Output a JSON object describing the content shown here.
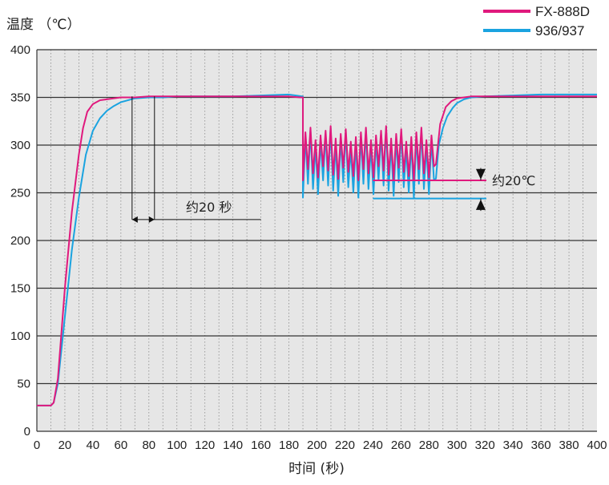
{
  "chart_data": {
    "type": "line",
    "ylabel": "温度 （℃）",
    "xlabel": "时间 (秒)",
    "xlim": [
      0,
      400
    ],
    "ylim": [
      0,
      400
    ],
    "x_ticks": [
      0,
      20,
      40,
      60,
      80,
      100,
      120,
      140,
      160,
      180,
      200,
      220,
      240,
      260,
      280,
      300,
      320,
      340,
      360,
      380,
      400
    ],
    "y_ticks": [
      0,
      50,
      100,
      150,
      200,
      250,
      300,
      350,
      400
    ],
    "grid": true,
    "legend_position": "top-right",
    "series": [
      {
        "name": "FX-888D",
        "color": "#e0197d",
        "x": [
          0,
          10,
          12,
          15,
          20,
          25,
          30,
          33,
          36,
          40,
          45,
          50,
          55,
          60,
          70,
          80,
          90,
          100,
          120,
          140,
          160,
          180,
          188,
          190
        ],
        "y": [
          27,
          27,
          30,
          55,
          150,
          230,
          290,
          318,
          335,
          343,
          347,
          348,
          349,
          350,
          350,
          351,
          351,
          351,
          351,
          351,
          351,
          351,
          350,
          350
        ],
        "oscillation": {
          "x_start": 190,
          "x_end": 285,
          "min": 263,
          "max": 320,
          "center": 290
        },
        "recovery": {
          "x": [
            285,
            288,
            292,
            296,
            300,
            305,
            310,
            320,
            340,
            360,
            380,
            400
          ],
          "y": [
            280,
            322,
            340,
            346,
            349,
            350,
            351,
            351,
            351,
            351,
            351,
            351
          ]
        }
      },
      {
        "name": "936/937",
        "color": "#1aa3e0",
        "x": [
          0,
          10,
          12,
          15,
          20,
          25,
          30,
          35,
          40,
          45,
          50,
          55,
          60,
          70,
          80,
          90,
          100,
          120,
          140,
          160,
          180,
          185,
          190
        ],
        "y": [
          27,
          27,
          30,
          50,
          120,
          190,
          245,
          290,
          315,
          328,
          336,
          341,
          345,
          349,
          350,
          350,
          351,
          351,
          351,
          352,
          353,
          352,
          351
        ],
        "oscillation": {
          "x_start": 190,
          "x_end": 285,
          "min": 245,
          "max": 318,
          "center": 278
        },
        "recovery": {
          "x": [
            285,
            287,
            290,
            293,
            297,
            300,
            305,
            310,
            320,
            340,
            360,
            380,
            400
          ],
          "y": [
            265,
            300,
            318,
            330,
            339,
            344,
            348,
            350,
            351,
            352,
            353,
            353,
            353
          ]
        }
      }
    ],
    "annotations": [
      {
        "text": "约20 秒"
      },
      {
        "text": "约20℃"
      }
    ]
  }
}
